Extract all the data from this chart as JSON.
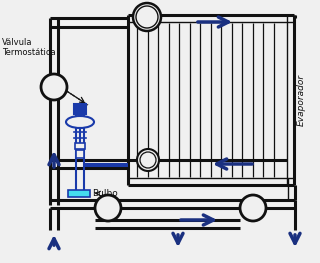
{
  "bg_color": "#f0f0f0",
  "pipe_color": "#111111",
  "arrow_color": "#1a3080",
  "blue_detail": "#1a3aaa",
  "cyan_detail": "#44ddee",
  "label_color": "#111111",
  "labels": {
    "valvula": "Válvula\nTermostática",
    "bulbo": "Bulbo",
    "evaporador": "Evaporador"
  },
  "fig_width": 3.2,
  "fig_height": 2.63,
  "dpi": 100
}
